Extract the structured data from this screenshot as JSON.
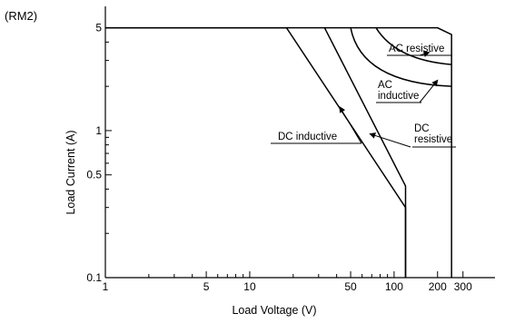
{
  "corner_label": "(RM2)",
  "chart_data": {
    "type": "line",
    "title": "",
    "xlabel": "Load  Voltage (V)",
    "ylabel": "Load Current (A)",
    "x_scale": "log",
    "y_scale": "log",
    "xlim": [
      1,
      500
    ],
    "ylim": [
      0.1,
      7
    ],
    "grid": false,
    "x_ticks": [
      {
        "value": 1,
        "label": "1"
      },
      {
        "value": 2,
        "label": ""
      },
      {
        "value": 3,
        "label": ""
      },
      {
        "value": 4,
        "label": ""
      },
      {
        "value": 5,
        "label": "5"
      },
      {
        "value": 6,
        "label": ""
      },
      {
        "value": 7,
        "label": ""
      },
      {
        "value": 8,
        "label": ""
      },
      {
        "value": 9,
        "label": ""
      },
      {
        "value": 10,
        "label": "10"
      },
      {
        "value": 20,
        "label": ""
      },
      {
        "value": 30,
        "label": ""
      },
      {
        "value": 40,
        "label": ""
      },
      {
        "value": 50,
        "label": "50"
      },
      {
        "value": 60,
        "label": ""
      },
      {
        "value": 70,
        "label": ""
      },
      {
        "value": 80,
        "label": ""
      },
      {
        "value": 90,
        "label": ""
      },
      {
        "value": 100,
        "label": "100"
      },
      {
        "value": 200,
        "label": "200"
      },
      {
        "value": 300,
        "label": "300"
      }
    ],
    "y_ticks": [
      {
        "value": 0.1,
        "label": "0.1"
      },
      {
        "value": 0.2,
        "label": ""
      },
      {
        "value": 0.3,
        "label": ""
      },
      {
        "value": 0.4,
        "label": ""
      },
      {
        "value": 0.5,
        "label": "0.5"
      },
      {
        "value": 0.6,
        "label": ""
      },
      {
        "value": 0.7,
        "label": ""
      },
      {
        "value": 0.8,
        "label": ""
      },
      {
        "value": 0.9,
        "label": ""
      },
      {
        "value": 1,
        "label": "1"
      },
      {
        "value": 2,
        "label": ""
      },
      {
        "value": 3,
        "label": ""
      },
      {
        "value": 4,
        "label": ""
      },
      {
        "value": 5,
        "label": "5"
      }
    ],
    "series": [
      {
        "name": "DC inductive",
        "points": [
          [
            1,
            5
          ],
          [
            18,
            5
          ],
          [
            120,
            0.3
          ],
          [
            120,
            0.1
          ]
        ]
      },
      {
        "name": "DC resistive",
        "points": [
          [
            33,
            5
          ],
          [
            120,
            0.42
          ],
          [
            120,
            0.1
          ]
        ]
      },
      {
        "name": "AC inductive",
        "points": [
          [
            50,
            5
          ],
          [
            250,
            2.0
          ]
        ]
      },
      {
        "name": "AC resistive",
        "points": [
          [
            75,
            5
          ],
          [
            200,
            5
          ],
          [
            250,
            4.5
          ],
          [
            250,
            0.1
          ]
        ]
      }
    ],
    "annotations": [
      {
        "text": "AC resistive",
        "lines": [
          "AC resistive"
        ],
        "arrow_to": [
          175,
          3.4
        ]
      },
      {
        "text": "AC inductive",
        "lines": [
          "AC",
          "inductive"
        ],
        "arrow_to": [
          200,
          2.2
        ]
      },
      {
        "text": "DC inductive",
        "lines": [
          "DC inductive"
        ],
        "arrow_to": [
          42,
          1.45
        ]
      },
      {
        "text": "DC resistive",
        "lines": [
          "DC",
          "resistive"
        ],
        "arrow_to": [
          68,
          0.95
        ]
      }
    ]
  }
}
